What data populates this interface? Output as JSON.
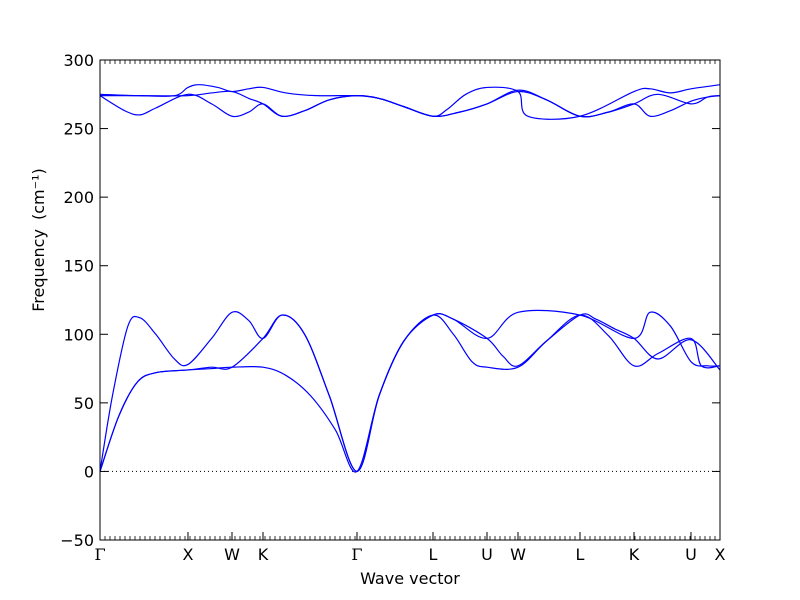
{
  "chart_data": {
    "type": "line",
    "xlabel": "Wave vector",
    "ylabel": "Frequency",
    "ylabel_unit": "(cm⁻¹)",
    "ylim": [
      -50,
      300
    ],
    "yticks": [
      -50,
      0,
      50,
      100,
      150,
      200,
      250,
      300
    ],
    "xlim": [
      0,
      1
    ],
    "kpoints": [
      {
        "label": "Γ",
        "pos": 0.0
      },
      {
        "label": "X",
        "pos": 0.1419
      },
      {
        "label": "W",
        "pos": 0.2129
      },
      {
        "label": "K",
        "pos": 0.2629
      },
      {
        "label": "Γ",
        "pos": 0.4145
      },
      {
        "label": "L",
        "pos": 0.5371
      },
      {
        "label": "U",
        "pos": 0.6242
      },
      {
        "label": "W",
        "pos": 0.6742
      },
      {
        "label": "L",
        "pos": 0.7742
      },
      {
        "label": "K",
        "pos": 0.8613
      },
      {
        "label": "U",
        "pos": 0.9532
      },
      {
        "label": "X",
        "pos": 1.0
      }
    ],
    "zero_line": {
      "y": 0,
      "style": "dotted"
    },
    "series_color": "#0000ff",
    "series": [
      {
        "points": [
          [
            0,
            0
          ],
          [
            0.03,
            40
          ],
          [
            0.06,
            65
          ],
          [
            0.09,
            72
          ],
          [
            0.1419,
            74
          ],
          [
            0.18,
            75
          ],
          [
            0.2129,
            76
          ],
          [
            0.2629,
            76
          ],
          [
            0.3,
            70
          ],
          [
            0.34,
            55
          ],
          [
            0.38,
            30
          ],
          [
            0.4145,
            0
          ],
          [
            0.45,
            55
          ],
          [
            0.49,
            95
          ],
          [
            0.5371,
            114
          ],
          [
            0.57,
            111
          ],
          [
            0.6242,
            97
          ],
          [
            0.65,
            84
          ],
          [
            0.6742,
            77
          ],
          [
            0.72,
            95
          ],
          [
            0.7742,
            114
          ],
          [
            0.8,
            111
          ],
          [
            0.83,
            104
          ],
          [
            0.8613,
            97
          ],
          [
            0.9,
            82
          ],
          [
            0.9532,
            96
          ],
          [
            1.0,
            74
          ]
        ]
      },
      {
        "points": [
          [
            0,
            0
          ],
          [
            0.03,
            40
          ],
          [
            0.06,
            65
          ],
          [
            0.09,
            72
          ],
          [
            0.1419,
            74
          ],
          [
            0.18,
            76
          ],
          [
            0.2129,
            76
          ],
          [
            0.2629,
            97
          ],
          [
            0.2935,
            114
          ],
          [
            0.33,
            100
          ],
          [
            0.37,
            55
          ],
          [
            0.4145,
            0
          ],
          [
            0.45,
            55
          ],
          [
            0.49,
            95
          ],
          [
            0.5371,
            114
          ],
          [
            0.57,
            100
          ],
          [
            0.6,
            80
          ],
          [
            0.6242,
            76
          ],
          [
            0.6742,
            76
          ],
          [
            0.72,
            95
          ],
          [
            0.7742,
            114
          ],
          [
            0.82,
            99
          ],
          [
            0.8613,
            77
          ],
          [
            0.9,
            86
          ],
          [
            0.9532,
            97
          ],
          [
            0.97,
            77
          ],
          [
            1.0,
            77
          ]
        ]
      },
      {
        "points": [
          [
            0,
            0
          ],
          [
            0.02,
            55
          ],
          [
            0.045,
            106
          ],
          [
            0.0645,
            112
          ],
          [
            0.09,
            100
          ],
          [
            0.12,
            82
          ],
          [
            0.1419,
            78
          ],
          [
            0.18,
            97
          ],
          [
            0.2129,
            116
          ],
          [
            0.24,
            110
          ],
          [
            0.2629,
            97
          ],
          [
            0.2935,
            114
          ],
          [
            0.33,
            100
          ],
          [
            0.37,
            55
          ],
          [
            0.4145,
            0
          ],
          [
            0.45,
            55
          ],
          [
            0.49,
            95
          ],
          [
            0.5371,
            114
          ],
          [
            0.57,
            111
          ],
          [
            0.6242,
            97
          ],
          [
            0.6742,
            116
          ],
          [
            0.7742,
            114
          ],
          [
            0.8613,
            97
          ],
          [
            0.8871,
            116
          ],
          [
            0.92,
            106
          ],
          [
            0.9532,
            80
          ],
          [
            0.98,
            77
          ],
          [
            1.0,
            77
          ]
        ]
      },
      {
        "points": [
          [
            0,
            274
          ],
          [
            0.04,
            263
          ],
          [
            0.0645,
            260
          ],
          [
            0.09,
            265
          ],
          [
            0.1419,
            275
          ],
          [
            0.18,
            268
          ],
          [
            0.2129,
            259
          ],
          [
            0.24,
            262
          ],
          [
            0.2629,
            268
          ],
          [
            0.2935,
            259
          ],
          [
            0.33,
            263
          ],
          [
            0.37,
            271
          ],
          [
            0.4145,
            274
          ],
          [
            0.45,
            272
          ],
          [
            0.49,
            266
          ],
          [
            0.5371,
            259
          ],
          [
            0.58,
            262
          ],
          [
            0.6242,
            268
          ],
          [
            0.6742,
            277
          ],
          [
            0.72,
            271
          ],
          [
            0.7742,
            259
          ],
          [
            0.82,
            262
          ],
          [
            0.8613,
            268
          ],
          [
            0.8871,
            259
          ],
          [
            0.92,
            263
          ],
          [
            0.9532,
            270
          ],
          [
            0.98,
            273
          ],
          [
            1.0,
            274
          ]
        ]
      },
      {
        "points": [
          [
            0,
            274
          ],
          [
            0.06,
            274
          ],
          [
            0.1419,
            274
          ],
          [
            0.18,
            276
          ],
          [
            0.2129,
            277
          ],
          [
            0.24,
            272
          ],
          [
            0.2629,
            268
          ],
          [
            0.2935,
            259
          ],
          [
            0.33,
            263
          ],
          [
            0.37,
            271
          ],
          [
            0.4145,
            274
          ],
          [
            0.45,
            272
          ],
          [
            0.49,
            266
          ],
          [
            0.5371,
            259
          ],
          [
            0.58,
            262
          ],
          [
            0.6242,
            268
          ],
          [
            0.6742,
            278
          ],
          [
            0.72,
            271
          ],
          [
            0.7742,
            259
          ],
          [
            0.82,
            262
          ],
          [
            0.8613,
            268
          ],
          [
            0.9,
            275
          ],
          [
            0.9532,
            268
          ],
          [
            0.98,
            273
          ],
          [
            1.0,
            274
          ]
        ]
      },
      {
        "points": [
          [
            0,
            275
          ],
          [
            0.06,
            274
          ],
          [
            0.12,
            274
          ],
          [
            0.1419,
            280
          ],
          [
            0.16,
            282
          ],
          [
            0.19,
            280
          ],
          [
            0.2129,
            277
          ],
          [
            0.24,
            279
          ],
          [
            0.2629,
            280
          ],
          [
            0.3,
            276
          ],
          [
            0.35,
            274
          ],
          [
            0.4145,
            274
          ],
          [
            0.45,
            272
          ],
          [
            0.49,
            266
          ],
          [
            0.5371,
            259
          ],
          [
            0.56,
            264
          ],
          [
            0.59,
            275
          ],
          [
            0.6242,
            280
          ],
          [
            0.6742,
            277
          ],
          [
            0.69,
            259
          ],
          [
            0.7742,
            259
          ],
          [
            0.8613,
            277
          ],
          [
            0.8871,
            279
          ],
          [
            0.92,
            276
          ],
          [
            0.9532,
            279
          ],
          [
            1.0,
            282
          ]
        ]
      }
    ]
  }
}
